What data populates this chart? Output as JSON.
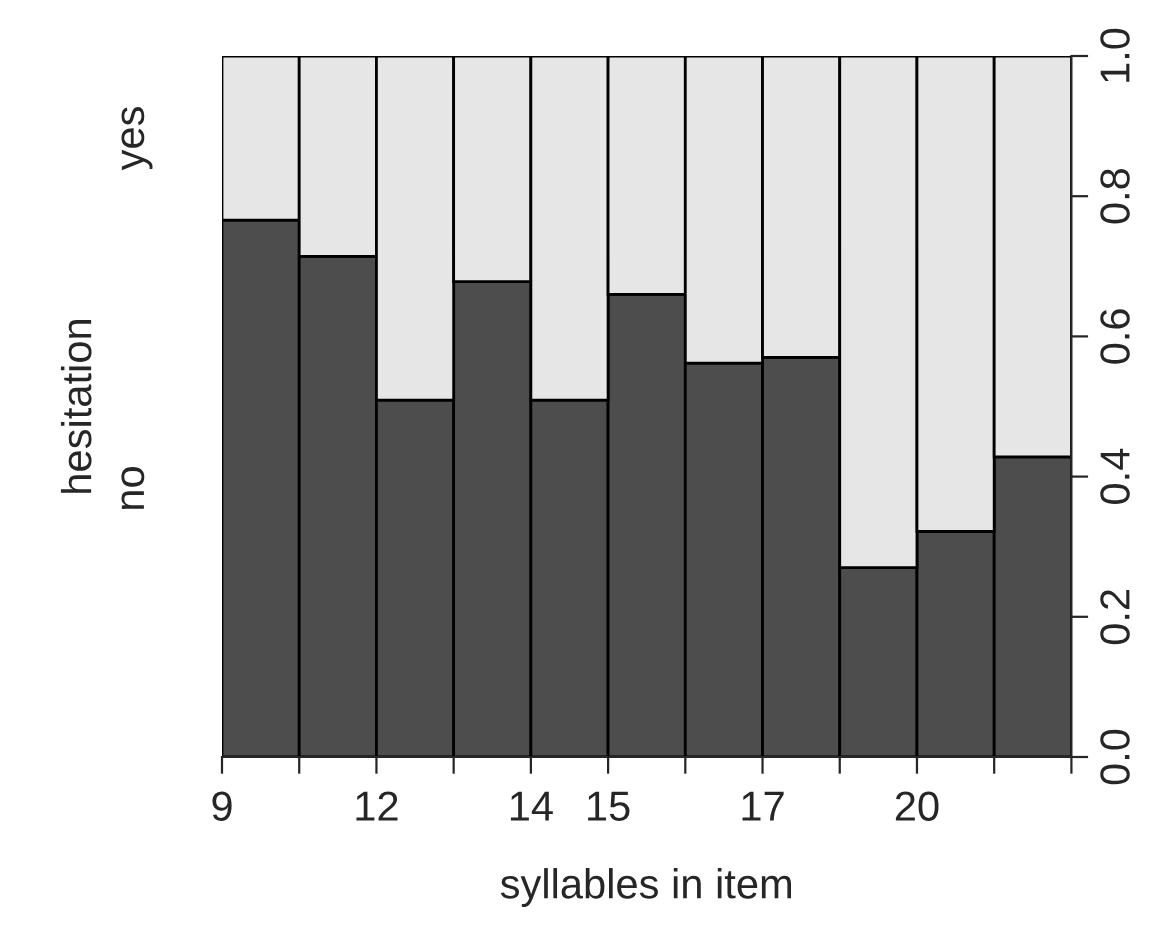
{
  "chart_data": {
    "type": "bar",
    "stacked": true,
    "xlabel": "syllables in item",
    "ylabel": "hesitation",
    "categories": [
      "9",
      null,
      "12",
      null,
      "14",
      "15",
      null,
      "17",
      null,
      "20",
      null
    ],
    "series": [
      {
        "name": "no",
        "color": "#4d4d4d",
        "values": [
          0.766,
          0.714,
          0.509,
          0.678,
          0.509,
          0.66,
          0.562,
          0.57,
          0.27,
          0.322,
          0.428
        ]
      },
      {
        "name": "yes",
        "color": "#e6e6e6",
        "values": [
          0.234,
          0.286,
          0.491,
          0.322,
          0.491,
          0.34,
          0.438,
          0.43,
          0.73,
          0.678,
          0.572
        ]
      }
    ],
    "ylim": [
      0,
      1
    ],
    "yticks": [
      {
        "value": 0,
        "label": "0.0"
      },
      0.2,
      0.4,
      0.6,
      0.8,
      {
        "value": 1,
        "label": "1.0"
      }
    ],
    "legend": false
  }
}
